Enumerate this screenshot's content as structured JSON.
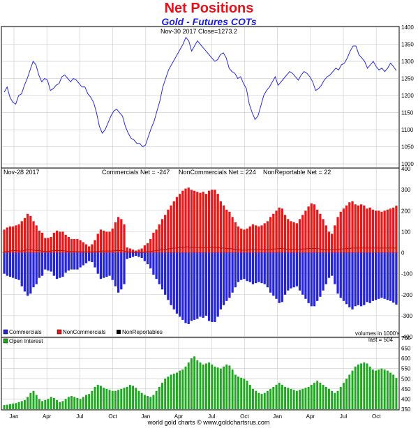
{
  "header": {
    "title": "Net Positions",
    "subtitle": "Gold - Futures COTs",
    "footer": "world gold charts © www.goldchartsrus.com"
  },
  "colors": {
    "price": "#2a2ae0",
    "commercials": "#2424d8",
    "noncommercials": "#e81818",
    "nonreportables": "#000000",
    "open_interest": "#1ea81e",
    "grid": "#c8c8c8"
  },
  "chart_data": [
    {
      "type": "line",
      "panel": "price",
      "annotation": "Nov-30  2017   Close=1273.2",
      "ylim": [
        990,
        1400
      ],
      "yticks": [
        1000,
        1050,
        1100,
        1150,
        1200,
        1250,
        1300,
        1350,
        1400
      ],
      "x_range": [
        "2015-12",
        "2017-12"
      ],
      "series": [
        {
          "values": [
            1210,
            1225,
            1195,
            1180,
            1175,
            1200,
            1205,
            1230,
            1250,
            1275,
            1300,
            1290,
            1260,
            1240,
            1250,
            1245,
            1215,
            1220,
            1230,
            1235,
            1255,
            1260,
            1250,
            1240,
            1250,
            1245,
            1235,
            1225,
            1225,
            1205,
            1195,
            1180,
            1150,
            1110,
            1090,
            1100,
            1120,
            1140,
            1155,
            1160,
            1150,
            1140,
            1110,
            1090,
            1075,
            1070,
            1060,
            1060,
            1050,
            1055,
            1080,
            1105,
            1125,
            1155,
            1185,
            1225,
            1250,
            1275,
            1290,
            1305,
            1320,
            1335,
            1350,
            1370,
            1360,
            1330,
            1345,
            1360,
            1350,
            1340,
            1330,
            1320,
            1310,
            1300,
            1305,
            1320,
            1325,
            1310,
            1280,
            1270,
            1265,
            1250,
            1255,
            1235,
            1220,
            1175,
            1150,
            1130,
            1140,
            1170,
            1200,
            1215,
            1225,
            1240,
            1255,
            1230,
            1240,
            1250,
            1260,
            1270,
            1265,
            1255,
            1245,
            1260,
            1270,
            1265,
            1255,
            1240,
            1215,
            1220,
            1230,
            1245,
            1255,
            1260,
            1270,
            1280,
            1275,
            1290,
            1295,
            1310,
            1330,
            1345,
            1345,
            1320,
            1310,
            1300,
            1280,
            1290,
            1300,
            1285,
            1275,
            1280,
            1270,
            1280,
            1295,
            1285,
            1273
          ]
        }
      ]
    },
    {
      "type": "bar",
      "panel": "net-positions",
      "annotation_date": "Nov-28  2017",
      "ylim": [
        -400,
        400
      ],
      "yticks": [
        -400,
        -300,
        -200,
        -100,
        0,
        100,
        200,
        300,
        400
      ],
      "summary": [
        "Commercials Net = -247",
        "NonCommercials Net = 224",
        "NonReportable Net = 22"
      ],
      "legend": [
        "Commercials",
        "NonCommercials",
        "NonReportables"
      ],
      "volume_note": "volumes in 1000's",
      "series": [
        {
          "name": "Commercials",
          "values": [
            -100,
            -110,
            -115,
            -120,
            -125,
            -130,
            -160,
            -185,
            -205,
            -195,
            -165,
            -150,
            -120,
            -110,
            -80,
            -85,
            -90,
            -110,
            -125,
            -120,
            -115,
            -95,
            -85,
            -80,
            -80,
            -80,
            -70,
            -60,
            -50,
            -40,
            -45,
            -70,
            -100,
            -125,
            -120,
            -115,
            -110,
            -130,
            -160,
            -190,
            -175,
            -150,
            -30,
            -25,
            -20,
            -15,
            -20,
            -25,
            -40,
            -55,
            -75,
            -105,
            -125,
            -150,
            -175,
            -200,
            -225,
            -250,
            -270,
            -290,
            -305,
            -320,
            -335,
            -340,
            -325,
            -320,
            -315,
            -305,
            -310,
            -300,
            -325,
            -330,
            -330,
            -305,
            -270,
            -250,
            -230,
            -215,
            -190,
            -165,
            -140,
            -130,
            -125,
            -135,
            -140,
            -150,
            -145,
            -140,
            -145,
            -150,
            -165,
            -190,
            -205,
            -220,
            -240,
            -235,
            -200,
            -180,
            -170,
            -165,
            -160,
            -180,
            -200,
            -220,
            -240,
            -255,
            -255,
            -230,
            -210,
            -180,
            -150,
            -120,
            -110,
            -150,
            -195,
            -215,
            -230,
            -245,
            -260,
            -270,
            -255,
            -250,
            -255,
            -250,
            -235,
            -240,
            -230,
            -225,
            -220,
            -215,
            -220,
            -225,
            -230,
            -238,
            -247
          ]
        },
        {
          "name": "NonCommercials",
          "values": [
            110,
            120,
            125,
            125,
            130,
            135,
            150,
            165,
            185,
            175,
            150,
            130,
            105,
            95,
            70,
            70,
            75,
            95,
            105,
            100,
            100,
            85,
            75,
            65,
            65,
            65,
            60,
            50,
            40,
            30,
            40,
            60,
            90,
            110,
            105,
            100,
            100,
            115,
            145,
            170,
            160,
            135,
            25,
            20,
            15,
            10,
            15,
            20,
            35,
            45,
            65,
            95,
            110,
            135,
            160,
            180,
            205,
            225,
            245,
            265,
            280,
            295,
            305,
            310,
            300,
            295,
            290,
            285,
            290,
            280,
            295,
            300,
            300,
            280,
            245,
            225,
            205,
            195,
            170,
            145,
            125,
            115,
            110,
            115,
            125,
            135,
            130,
            125,
            130,
            140,
            150,
            170,
            185,
            200,
            215,
            210,
            180,
            160,
            150,
            145,
            140,
            160,
            180,
            200,
            220,
            235,
            230,
            205,
            185,
            160,
            130,
            100,
            90,
            130,
            170,
            195,
            210,
            225,
            240,
            245,
            230,
            225,
            230,
            225,
            210,
            215,
            205,
            200,
            200,
            195,
            200,
            205,
            210,
            215,
            224
          ]
        },
        {
          "name": "NonReportables",
          "values": [
            5,
            6,
            8,
            10,
            10,
            8,
            8,
            10,
            15,
            15,
            12,
            10,
            10,
            8,
            6,
            6,
            8,
            10,
            10,
            10,
            10,
            8,
            6,
            6,
            6,
            5,
            5,
            4,
            4,
            4,
            4,
            5,
            6,
            8,
            8,
            8,
            8,
            8,
            10,
            10,
            10,
            8,
            4,
            3,
            2,
            2,
            2,
            2,
            3,
            5,
            6,
            8,
            10,
            12,
            14,
            16,
            18,
            20,
            22,
            22,
            25,
            25,
            28,
            28,
            26,
            25,
            25,
            24,
            24,
            24,
            25,
            25,
            26,
            24,
            22,
            22,
            20,
            20,
            18,
            16,
            14,
            12,
            12,
            12,
            14,
            14,
            14,
            14,
            14,
            14,
            15,
            16,
            18,
            18,
            20,
            20,
            18,
            16,
            16,
            16,
            15,
            16,
            18,
            18,
            20,
            20,
            20,
            20,
            18,
            16,
            16,
            14,
            14,
            15,
            16,
            18,
            18,
            20,
            20,
            22,
            22,
            22,
            22,
            22,
            22,
            22,
            22,
            22,
            22,
            22,
            22,
            22,
            22,
            22,
            22
          ]
        }
      ]
    },
    {
      "type": "bar",
      "panel": "open-interest",
      "legend": [
        "Open Interest"
      ],
      "last_note": "last = 504",
      "ylim": [
        350,
        700
      ],
      "yticks": [
        350,
        400,
        450,
        500,
        550,
        600,
        650,
        700
      ],
      "x_tick_labels": [
        "Jan",
        "Apr",
        "Jul",
        "Oct",
        "Jan",
        "Apr",
        "Jul",
        "Oct",
        "Jan",
        "Apr",
        "Jul",
        "Oct"
      ],
      "series": [
        {
          "name": "Open Interest",
          "values": [
            370,
            372,
            375,
            378,
            380,
            385,
            390,
            395,
            410,
            430,
            440,
            420,
            400,
            390,
            395,
            400,
            410,
            405,
            395,
            385,
            390,
            400,
            410,
            415,
            410,
            405,
            400,
            410,
            420,
            425,
            440,
            460,
            470,
            465,
            455,
            450,
            445,
            440,
            440,
            445,
            450,
            455,
            460,
            470,
            465,
            455,
            440,
            430,
            420,
            415,
            410,
            420,
            440,
            460,
            480,
            500,
            510,
            520,
            525,
            530,
            540,
            545,
            560,
            580,
            600,
            610,
            590,
            580,
            570,
            575,
            580,
            570,
            560,
            555,
            550,
            560,
            570,
            565,
            545,
            520,
            510,
            505,
            500,
            490,
            470,
            450,
            440,
            430,
            425,
            430,
            440,
            450,
            460,
            470,
            480,
            470,
            460,
            455,
            450,
            445,
            440,
            445,
            450,
            455,
            460,
            470,
            480,
            490,
            480,
            470,
            460,
            450,
            440,
            430,
            440,
            460,
            480,
            500,
            520,
            540,
            560,
            570,
            575,
            580,
            575,
            560,
            545,
            540,
            545,
            550,
            545,
            540,
            530,
            520,
            504
          ]
        }
      ]
    }
  ]
}
